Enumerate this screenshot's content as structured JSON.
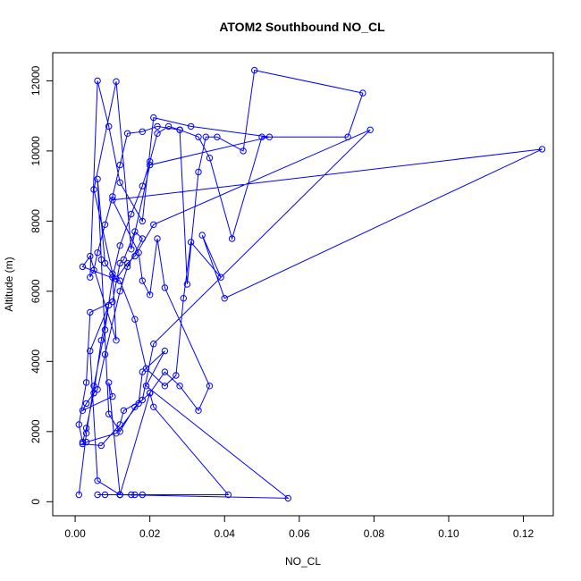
{
  "chart_data": {
    "type": "line",
    "markers": true,
    "title": "ATOM2 Southbound NO_CL",
    "xlabel": "NO_CL",
    "ylabel": "Altitude (m)",
    "xlim": [
      -0.006,
      0.128
    ],
    "ylim": [
      -400,
      12800
    ],
    "xticks": [
      0.0,
      0.02,
      0.04,
      0.06,
      0.08,
      0.1,
      0.12
    ],
    "xtick_labels": [
      "0.00",
      "0.02",
      "0.04",
      "0.06",
      "0.08",
      "0.10",
      "0.12"
    ],
    "yticks": [
      0,
      2000,
      4000,
      6000,
      8000,
      10000,
      12000
    ],
    "ytick_labels": [
      "0",
      "2000",
      "4000",
      "6000",
      "8000",
      "10000",
      "12000"
    ],
    "grid": false,
    "color": "#0000ff",
    "series": [
      {
        "x": [
          0.001,
          0.003,
          0.005,
          0.008,
          0.01,
          0.012,
          0.015,
          0.018,
          0.02,
          0.022,
          0.025,
          0.028,
          0.03,
          0.033,
          0.035,
          0.038,
          0.045,
          0.048,
          0.077,
          0.073,
          0.05,
          0.042,
          0.036,
          0.033,
          0.028,
          0.022,
          0.018,
          0.014,
          0.012,
          0.01,
          0.008,
          0.006,
          0.005,
          0.004,
          0.006,
          0.009,
          0.012,
          0.018,
          0.021,
          0.031,
          0.052,
          0.02,
          0.015,
          0.011,
          0.005,
          0.01,
          0.011,
          0.004,
          0.002,
          0.012,
          0.016,
          0.019,
          0.024,
          0.027,
          0.029,
          0.031,
          0.039,
          0.034,
          0.04,
          0.125,
          0.01,
          0.017,
          0.018,
          0.02,
          0.022,
          0.024,
          0.036,
          0.033,
          0.028,
          0.024,
          0.02,
          0.016,
          0.012,
          0.009,
          0.007,
          0.006,
          0.008,
          0.011,
          0.014,
          0.016,
          0.021,
          0.079,
          0.021,
          0.018,
          0.013,
          0.012,
          0.007,
          0.002,
          0.003,
          0.011,
          0.017,
          0.018,
          0.024,
          0.019,
          0.057,
          0.012,
          0.006,
          0.004,
          0.009,
          0.007,
          0.005,
          0.003,
          0.002,
          0.001,
          0.003,
          0.004,
          0.01,
          0.012,
          0.013,
          0.016,
          0.018,
          0.014,
          0.012,
          0.008,
          0.006,
          0.005,
          0.003,
          0.002,
          0.01,
          0.009,
          0.012,
          0.015,
          0.016,
          0.018,
          0.041,
          0.021,
          0.02,
          0.012,
          0.008,
          0.006
        ],
        "y": [
          200,
          1950,
          3300,
          4900,
          6400,
          7300,
          8200,
          9000,
          9700,
          10500,
          10700,
          10600,
          6200,
          9400,
          10400,
          10400,
          10000,
          12300,
          11650,
          10400,
          10400,
          7500,
          9800,
          10400,
          10600,
          10700,
          10550,
          10500,
          9600,
          8700,
          7900,
          7100,
          6600,
          6400,
          12000,
          10700,
          9100,
          8000,
          10950,
          10700,
          10400,
          9600,
          7200,
          11980,
          8900,
          6500,
          4600,
          7000,
          6700,
          6300,
          5200,
          3800,
          3300,
          3600,
          5800,
          7400,
          6400,
          7600,
          5800,
          10050,
          8600,
          7100,
          6300,
          5900,
          7500,
          6100,
          3300,
          2600,
          3300,
          3700,
          3100,
          2700,
          2000,
          2500,
          6900,
          9200,
          6800,
          6350,
          6800,
          7000,
          7900,
          10600,
          4500,
          2900,
          2600,
          2200,
          1600,
          1650,
          1700,
          1950,
          2800,
          3700,
          4300,
          3300,
          100,
          200,
          600,
          4300,
          5600,
          4600,
          3100,
          2100,
          1700,
          2200,
          3400,
          5400,
          5700,
          6800,
          6900,
          7700,
          7500,
          6700,
          6000,
          4200,
          3200,
          3100,
          2800,
          2600,
          3000,
          3400,
          200,
          200,
          200,
          200,
          200,
          2700,
          3100,
          200,
          200,
          200
        ]
      }
    ]
  }
}
